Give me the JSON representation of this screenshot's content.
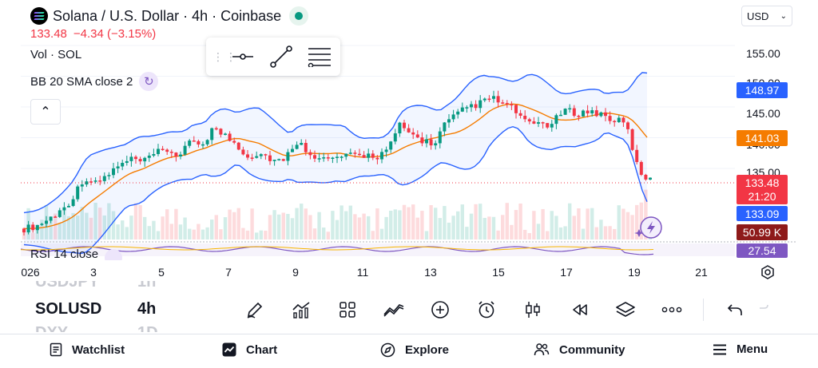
{
  "header": {
    "title": "Solana / U.S. Dollar · 4h · Coinbase",
    "price": "133.48",
    "change": "−4.34 (−3.15%)",
    "volume_label": "Vol · SOL",
    "indicator_label": "BB 20 SMA close 2",
    "rsi_label": "RSI 14 close",
    "currency": "USD"
  },
  "price_axis": {
    "labels": [
      "155.00",
      "150.00",
      "145.00",
      "140.00",
      "135.00"
    ],
    "tags": {
      "bb_upper": "148.97",
      "bb_basis": "141.03",
      "last_price": "133.48",
      "countdown": "21:20",
      "bb_lower": "133.09",
      "volume": "50.99 K",
      "rsi": "27.54"
    }
  },
  "time_axis": {
    "labels": [
      "026",
      "3",
      "5",
      "7",
      "9",
      "11",
      "13",
      "15",
      "17",
      "19",
      "21"
    ]
  },
  "symbol_list": [
    {
      "symbol": "USDJPY",
      "interval": "1h"
    },
    {
      "symbol": "SOLUSD",
      "interval": "4h"
    },
    {
      "symbol": "DXY",
      "interval": "1D"
    }
  ],
  "toolbar": {
    "icons": [
      "draw-icon",
      "indicators-icon",
      "layouts-icon",
      "compare-icon",
      "add-icon",
      "alert-icon",
      "chart-type-icon",
      "replay-icon",
      "layers-icon",
      "more-icon",
      "undo-icon",
      "redo-icon"
    ]
  },
  "nav": {
    "watchlist": "Watchlist",
    "chart": "Chart",
    "explore": "Explore",
    "community": "Community",
    "menu": "Menu"
  },
  "colors": {
    "up": "#089981",
    "down": "#f23645",
    "bb_band": "#2962ff",
    "bb_basis": "#f57c00",
    "volume_tag": "#8e1a1a",
    "rsi": "#7e57c2"
  },
  "chart_data": {
    "type": "candlestick",
    "symbol": "SOLUSD",
    "interval": "4h",
    "last_price": 133.48,
    "bollinger": {
      "upper": 148.97,
      "basis": 141.03,
      "lower": 133.09
    },
    "rsi": 27.54,
    "volume": "50.99 K"
  }
}
